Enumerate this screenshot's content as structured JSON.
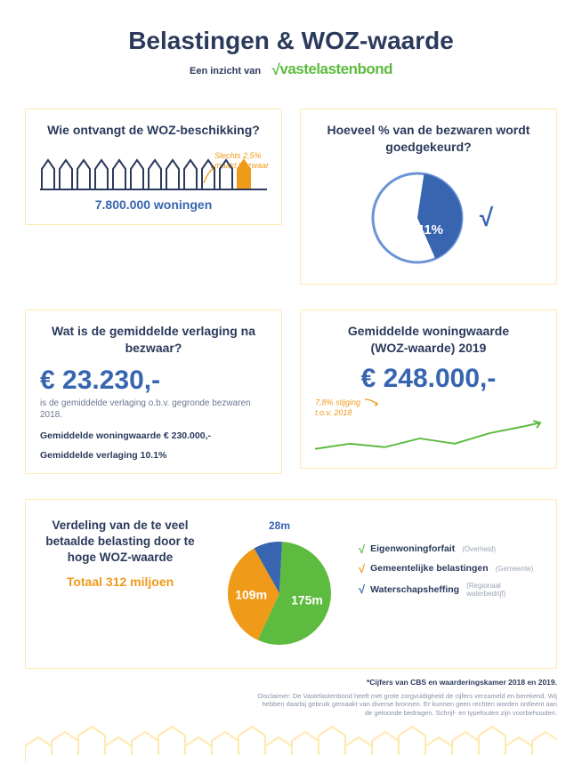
{
  "title": "Belastingen & WOZ-waarde",
  "subtitle_prefix": "Een inzicht van",
  "brand": "vastelastenbond",
  "colors": {
    "navy": "#2b3a5c",
    "blue": "#3765b0",
    "blue_light": "#6c94d6",
    "orange": "#f09a1a",
    "green": "#5dbb3f",
    "green_dark": "#4aa030",
    "beige_border": "#ffe9b0",
    "beige_fill": "#fff3d0",
    "gray": "#6a7891"
  },
  "card1": {
    "title": "Wie ontvangt de WOZ-beschikking?",
    "note_line1": "Slechts 2,5%",
    "note_line2": "maakt bezwaar",
    "house_count": 12,
    "highlight_index": 11,
    "caption": "7.800.000 woningen"
  },
  "card2": {
    "title": "Hoeveel % van de bezwaren wordt goedgekeurd?",
    "percent": 41,
    "percent_label": "41%",
    "pie": {
      "filled_color": "#3765b0",
      "empty_stroke": "#6c94d6",
      "bg": "#ffffff",
      "radius": 55
    }
  },
  "card3": {
    "title": "Wat is de gemiddelde verlaging na bezwaar?",
    "big": "€ 23.230,-",
    "desc": "is de gemiddelde verlaging o.b.v. gegronde bezwaren 2018.",
    "line_a": "Gemiddelde woningwaarde ",
    "line_a_bold": "€ 230.000,-",
    "line_b": "Gemiddelde verlaging ",
    "line_b_bold": "10.1%"
  },
  "card4": {
    "title_a": "Gemiddelde ",
    "title_b": "woningwaarde",
    "title_c": "(WOZ-waarde) ",
    "title_d": "2019",
    "big": "€ 248.000,-",
    "note_line1": "7,8% stijging",
    "note_line2": "t.o.v. 2018",
    "trend_color": "#5dbb3f"
  },
  "card5": {
    "title": "Verdeling van de te veel betaalde belasting door te hoge WOZ-waarde",
    "total": "Totaal 312 miljoen",
    "slices": [
      {
        "label": "175m",
        "value": 175,
        "color": "#5dbb3f",
        "name": "Eigenwoningforfait",
        "sub": "(Overheid)",
        "check_color": "#5dbb3f"
      },
      {
        "label": "109m",
        "value": 109,
        "color": "#f09a1a",
        "name": "Gemeentelijke belastingen",
        "sub": "(Gemeente)",
        "check_color": "#f09a1a"
      },
      {
        "label": "28m",
        "value": 28,
        "color": "#3765b0",
        "name": "Waterschapsheffing",
        "sub": "(Regionaal waterbedrijf)",
        "check_color": "#3765b0"
      }
    ]
  },
  "footnote": "*Cijfers van CBS en waarderingskamer 2018 en 2019.",
  "disclaimer": "Disclaimer: De Vastelastenbond heeft met grote zorgvuldigheid de cijfers verzameld en berekend. Wij hebben daarbij gebruik gemaakt van diverse bronnen. Er kunnen geen rechten worden ontleent aan de getoonde bedragen. Schrijf- en typefouten zijn voorbehouden."
}
